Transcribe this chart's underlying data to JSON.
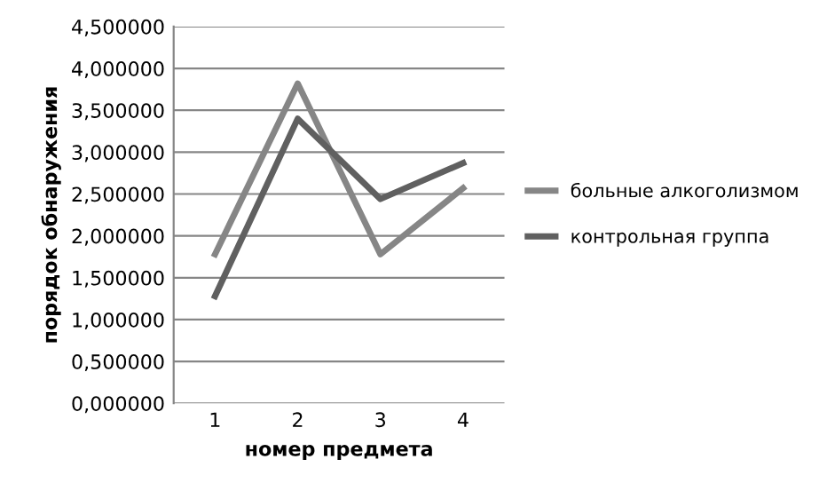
{
  "chart_data": {
    "type": "line",
    "xlabel": "номер предмета",
    "ylabel": "порядок обнаружения",
    "categories": [
      "1",
      "2",
      "3",
      "4"
    ],
    "series": [
      {
        "name": "больные алкоголизмом",
        "color": "#868686",
        "values": [
          1.78,
          3.82,
          1.78,
          2.57
        ]
      },
      {
        "name": "контрольная группа",
        "color": "#606060",
        "values": [
          1.28,
          3.4,
          2.44,
          2.87
        ]
      }
    ],
    "ylim": [
      0,
      4.5
    ],
    "yticks": [
      {
        "value": 0,
        "label": "0,000000"
      },
      {
        "value": 0.5,
        "label": "0,500000"
      },
      {
        "value": 1,
        "label": "1,000000"
      },
      {
        "value": 1.5,
        "label": "1,500000"
      },
      {
        "value": 2,
        "label": "2,000000"
      },
      {
        "value": 2.5,
        "label": "2,500000"
      },
      {
        "value": 3,
        "label": "3,000000"
      },
      {
        "value": 3.5,
        "label": "3,500000"
      },
      {
        "value": 4,
        "label": "4,000000"
      },
      {
        "value": 4.5,
        "label": "4,500000"
      }
    ],
    "grid": "y",
    "legend": "right",
    "marker": "none",
    "line_style": "solid"
  }
}
